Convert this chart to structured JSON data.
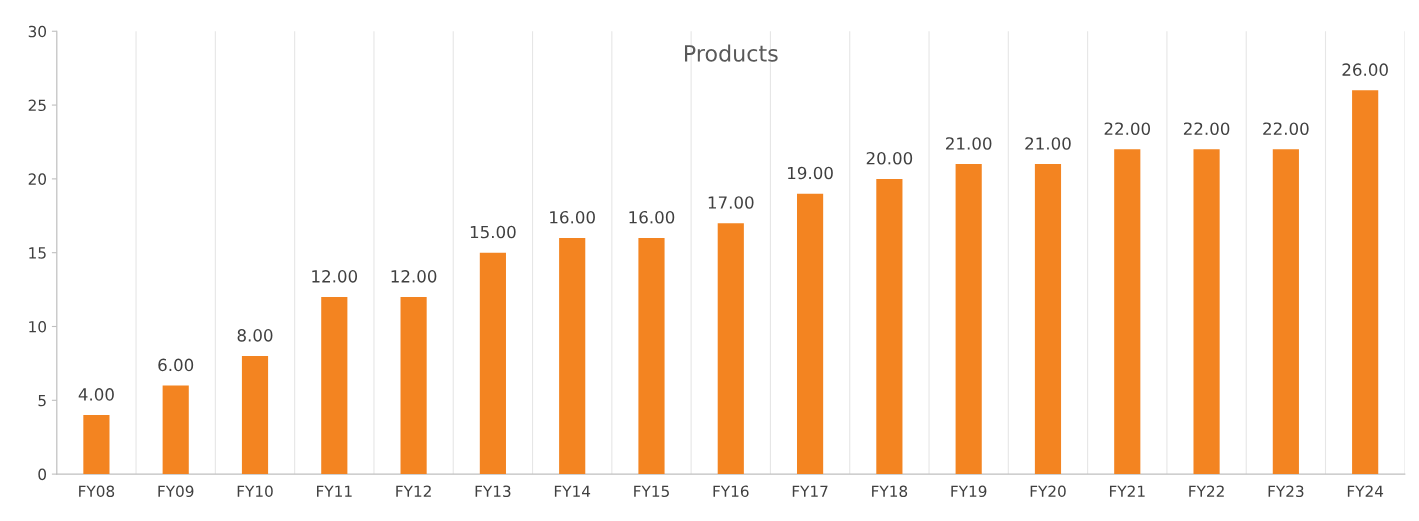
{
  "chart_data": {
    "type": "bar",
    "title": "Products",
    "categories": [
      "FY08",
      "FY09",
      "FY10",
      "FY11",
      "FY12",
      "FY13",
      "FY14",
      "FY15",
      "FY16",
      "FY17",
      "FY18",
      "FY19",
      "FY20",
      "FY21",
      "FY22",
      "FY23",
      "FY24"
    ],
    "values": [
      4,
      6,
      8,
      12,
      12,
      15,
      16,
      16,
      17,
      19,
      20,
      21,
      21,
      22,
      22,
      22,
      26
    ],
    "value_labels": [
      "4.00",
      "6.00",
      "8.00",
      "12.00",
      "12.00",
      "15.00",
      "16.00",
      "16.00",
      "17.00",
      "19.00",
      "20.00",
      "21.00",
      "21.00",
      "22.00",
      "22.00",
      "22.00",
      "26.00"
    ],
    "color": "#f38421",
    "ylim": [
      0,
      30
    ],
    "yticks": [
      0,
      5,
      10,
      15,
      20,
      25,
      30
    ],
    "grid": "x"
  }
}
